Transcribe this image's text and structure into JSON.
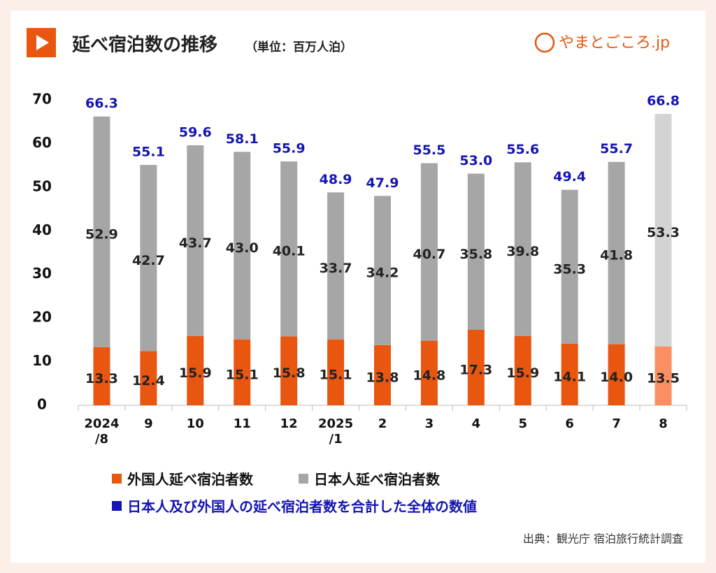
{
  "chart_data": {
    "type": "stacked-bar",
    "title": "延べ宿泊数の推移",
    "subtitle": "（単位：百万人泊）",
    "logo": "やまとごころ.jp",
    "source": "出典：観光庁 宿泊旅行統計調査",
    "categories": [
      "2024\n/8",
      "9",
      "10",
      "11",
      "12",
      "2025\n/1",
      "2",
      "3",
      "4",
      "5",
      "6",
      "7",
      "8"
    ],
    "series": [
      {
        "name": "外国人延べ宿泊者数",
        "color": "#e8560f",
        "colors": [
          "#e8560f",
          "#e8560f",
          "#e8560f",
          "#e8560f",
          "#e8560f",
          "#e8560f",
          "#e8560f",
          "#e8560f",
          "#e8560f",
          "#e8560f",
          "#e8560f",
          "#e8560f",
          "#f98f62"
        ],
        "values": [
          13.3,
          12.4,
          15.9,
          15.1,
          15.8,
          15.1,
          13.8,
          14.8,
          17.3,
          15.9,
          14.1,
          14.0,
          13.5
        ],
        "value_labels": [
          "13.3",
          "12.4",
          "15.9",
          "15.1",
          "15.8",
          "15.1",
          "13.8",
          "14.8",
          "17.3",
          "15.9",
          "14.1",
          "14.0",
          "13.5"
        ]
      },
      {
        "name": "日本人延べ宿泊者数",
        "color": "#a6a6a6",
        "colors": [
          "#a6a6a6",
          "#a6a6a6",
          "#a6a6a6",
          "#a6a6a6",
          "#a6a6a6",
          "#a6a6a6",
          "#a6a6a6",
          "#a6a6a6",
          "#a6a6a6",
          "#a6a6a6",
          "#a6a6a6",
          "#a6a6a6",
          "#d3d3d3"
        ],
        "values": [
          52.9,
          42.7,
          43.7,
          43.0,
          40.1,
          33.7,
          34.2,
          40.7,
          35.8,
          39.8,
          35.3,
          41.8,
          53.3
        ],
        "value_labels": [
          "52.9",
          "42.7",
          "43.7",
          "43.0",
          "40.1",
          "33.7",
          "34.2",
          "40.7",
          "35.8",
          "39.8",
          "35.3",
          "41.8",
          "53.3"
        ]
      }
    ],
    "totals": {
      "name": "日本人及び外国人の延べ宿泊者数を合計した全体の数値",
      "color": "#1414b4",
      "values": [
        66.3,
        55.1,
        59.6,
        58.1,
        55.9,
        48.9,
        47.9,
        55.5,
        53.0,
        55.6,
        49.4,
        55.7,
        66.8
      ],
      "value_labels": [
        "66.3",
        "55.1",
        "59.6",
        "58.1",
        "55.9",
        "48.9",
        "47.9",
        "55.5",
        "53.0",
        "55.6",
        "49.4",
        "55.7",
        "66.8"
      ]
    },
    "ylim": [
      0,
      70
    ],
    "yticks": [
      0,
      10,
      20,
      30,
      40,
      50,
      60,
      70
    ],
    "grid": false
  }
}
